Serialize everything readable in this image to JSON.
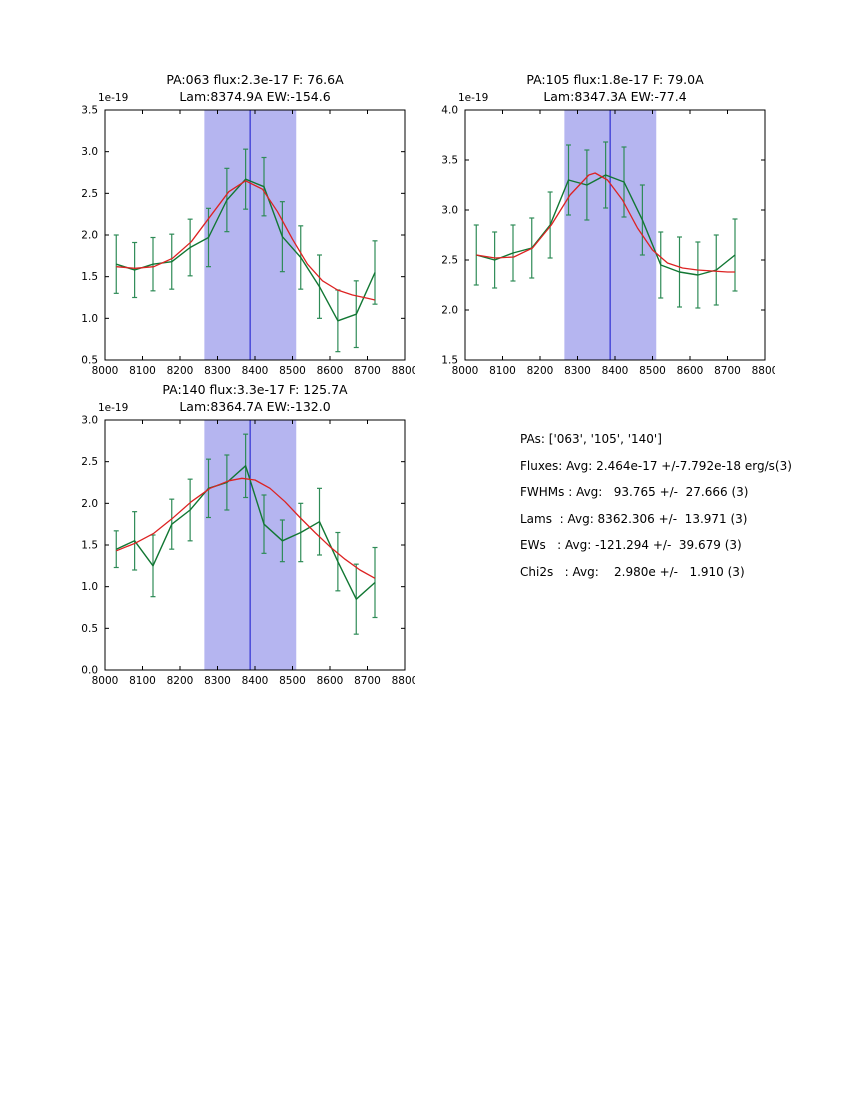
{
  "colors": {
    "band": "#b5b5f0",
    "vline": "#1515cc",
    "data_line": "#117733",
    "error_bar": "#2e8b57",
    "fit_line": "#dd2222",
    "axis": "#000000"
  },
  "chart_data": [
    {
      "type": "line",
      "title_line1": "PA:063 flux:2.3e-17 F: 76.6A",
      "title_line2": "Lam:8374.9A EW:-154.6",
      "offset_label": "1e-19",
      "xlabel": "",
      "ylabel": "",
      "xlim": [
        8000,
        8800
      ],
      "ylim": [
        0.5,
        3.5
      ],
      "xticks": [
        8000,
        8100,
        8200,
        8300,
        8400,
        8500,
        8600,
        8700,
        8800
      ],
      "yticks": [
        0.5,
        1.0,
        1.5,
        2.0,
        2.5,
        3.0,
        3.5
      ],
      "band": [
        8265,
        8510
      ],
      "vline": 8387,
      "grid": false,
      "legend": "none",
      "series": [
        {
          "name": "spectrum",
          "x": [
            8030,
            8079,
            8128,
            8178,
            8227,
            8276,
            8325,
            8375,
            8424,
            8473,
            8522,
            8572,
            8621,
            8670,
            8720
          ],
          "y": [
            1.65,
            1.58,
            1.65,
            1.68,
            1.85,
            1.97,
            2.42,
            2.67,
            2.58,
            1.98,
            1.73,
            1.38,
            0.97,
            1.05,
            1.55
          ],
          "yerr": [
            0.35,
            0.33,
            0.32,
            0.33,
            0.34,
            0.35,
            0.38,
            0.36,
            0.35,
            0.42,
            0.38,
            0.38,
            0.37,
            0.4,
            0.38
          ]
        },
        {
          "name": "gaussian-fit",
          "x": [
            8030,
            8080,
            8130,
            8180,
            8230,
            8280,
            8330,
            8375,
            8420,
            8460,
            8500,
            8540,
            8580,
            8620,
            8660,
            8700,
            8720
          ],
          "y": [
            1.62,
            1.6,
            1.62,
            1.72,
            1.92,
            2.22,
            2.52,
            2.65,
            2.55,
            2.28,
            1.95,
            1.65,
            1.45,
            1.34,
            1.28,
            1.24,
            1.22
          ]
        }
      ]
    },
    {
      "type": "line",
      "title_line1": "PA:105 flux:1.8e-17 F: 79.0A",
      "title_line2": "Lam:8347.3A EW:-77.4",
      "offset_label": "1e-19",
      "xlabel": "",
      "ylabel": "",
      "xlim": [
        8000,
        8800
      ],
      "ylim": [
        1.5,
        4.0
      ],
      "xticks": [
        8000,
        8100,
        8200,
        8300,
        8400,
        8500,
        8600,
        8700,
        8800
      ],
      "yticks": [
        1.5,
        2.0,
        2.5,
        3.0,
        3.5,
        4.0
      ],
      "band": [
        8265,
        8510
      ],
      "vline": 8387,
      "grid": false,
      "legend": "none",
      "series": [
        {
          "name": "spectrum",
          "x": [
            8030,
            8079,
            8128,
            8178,
            8227,
            8276,
            8325,
            8375,
            8424,
            8473,
            8522,
            8572,
            8621,
            8670,
            8720
          ],
          "y": [
            2.55,
            2.5,
            2.57,
            2.62,
            2.85,
            3.3,
            3.25,
            3.35,
            3.28,
            2.9,
            2.45,
            2.38,
            2.35,
            2.4,
            2.55
          ],
          "yerr": [
            0.3,
            0.28,
            0.28,
            0.3,
            0.33,
            0.35,
            0.35,
            0.33,
            0.35,
            0.35,
            0.33,
            0.35,
            0.33,
            0.35,
            0.36
          ]
        },
        {
          "name": "gaussian-fit",
          "x": [
            8030,
            8080,
            8130,
            8180,
            8230,
            8280,
            8330,
            8347,
            8380,
            8420,
            8460,
            8500,
            8540,
            8580,
            8620,
            8660,
            8700,
            8720
          ],
          "y": [
            2.55,
            2.52,
            2.53,
            2.62,
            2.85,
            3.15,
            3.35,
            3.37,
            3.3,
            3.1,
            2.82,
            2.6,
            2.47,
            2.42,
            2.4,
            2.39,
            2.38,
            2.38
          ]
        }
      ]
    },
    {
      "type": "line",
      "title_line1": "PA:140 flux:3.3e-17 F: 125.7A",
      "title_line2": "Lam:8364.7A EW:-132.0",
      "offset_label": "1e-19",
      "xlabel": "",
      "ylabel": "",
      "xlim": [
        8000,
        8800
      ],
      "ylim": [
        0.0,
        3.0
      ],
      "xticks": [
        8000,
        8100,
        8200,
        8300,
        8400,
        8500,
        8600,
        8700,
        8800
      ],
      "yticks": [
        0.0,
        0.5,
        1.0,
        1.5,
        2.0,
        2.5,
        3.0
      ],
      "band": [
        8265,
        8510
      ],
      "vline": 8387,
      "grid": false,
      "legend": "none",
      "series": [
        {
          "name": "spectrum",
          "x": [
            8030,
            8079,
            8128,
            8178,
            8227,
            8276,
            8325,
            8375,
            8424,
            8473,
            8522,
            8572,
            8621,
            8670,
            8720
          ],
          "y": [
            1.45,
            1.55,
            1.25,
            1.75,
            1.92,
            2.18,
            2.25,
            2.45,
            1.75,
            1.55,
            1.65,
            1.78,
            1.3,
            0.85,
            1.05
          ],
          "yerr": [
            0.22,
            0.35,
            0.37,
            0.3,
            0.37,
            0.35,
            0.33,
            0.38,
            0.35,
            0.25,
            0.35,
            0.4,
            0.35,
            0.42,
            0.42
          ]
        },
        {
          "name": "gaussian-fit",
          "x": [
            8030,
            8080,
            8130,
            8180,
            8230,
            8280,
            8330,
            8365,
            8400,
            8440,
            8480,
            8520,
            8560,
            8600,
            8640,
            8680,
            8720
          ],
          "y": [
            1.43,
            1.52,
            1.64,
            1.82,
            2.02,
            2.18,
            2.27,
            2.3,
            2.28,
            2.18,
            2.02,
            1.83,
            1.65,
            1.48,
            1.33,
            1.2,
            1.1
          ]
        }
      ]
    }
  ],
  "summary": {
    "lines": [
      "PAs: ['063', '105', '140']",
      "Fluxes: Avg: 2.464e-17 +/-7.792e-18 erg/s(3)",
      "FWHMs : Avg:   93.765 +/-  27.666 (3)",
      "Lams  : Avg: 8362.306 +/-  13.971 (3)",
      "EWs   : Avg: -121.294 +/-  39.679 (3)",
      "Chi2s   : Avg:    2.980e +/-   1.910 (3)"
    ]
  }
}
